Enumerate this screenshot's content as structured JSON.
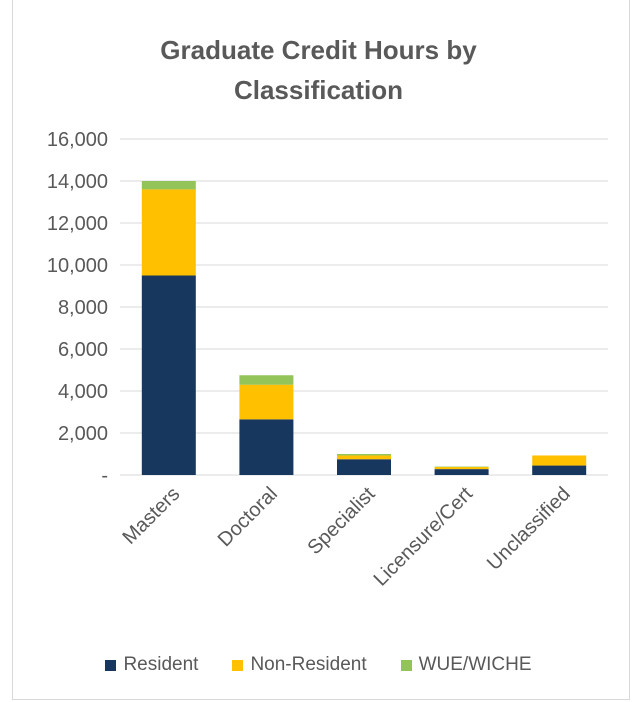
{
  "chart_data": {
    "type": "bar",
    "stacked": true,
    "title": "Graduate Credit Hours by Classification",
    "title_lines": [
      "Graduate Credit Hours by",
      "Classification"
    ],
    "categories": [
      "Masters",
      "Doctoral",
      "Specialist",
      "Licensure/Cert",
      "Unclassified"
    ],
    "series": [
      {
        "name": "Resident",
        "color": "#17375e",
        "values": [
          9500,
          2650,
          750,
          280,
          450
        ]
      },
      {
        "name": "Non-Resident",
        "color": "#ffc000",
        "values": [
          4100,
          1650,
          180,
          100,
          480
        ]
      },
      {
        "name": "WUE/WICHE",
        "color": "#92c45a",
        "values": [
          400,
          450,
          70,
          20,
          0
        ]
      }
    ],
    "ylim": [
      0,
      16000
    ],
    "yticks": [
      "-",
      "2,000",
      "4,000",
      "6,000",
      "8,000",
      "10,000",
      "12,000",
      "14,000",
      "16,000"
    ],
    "grid": true,
    "legend_position": "bottom"
  }
}
